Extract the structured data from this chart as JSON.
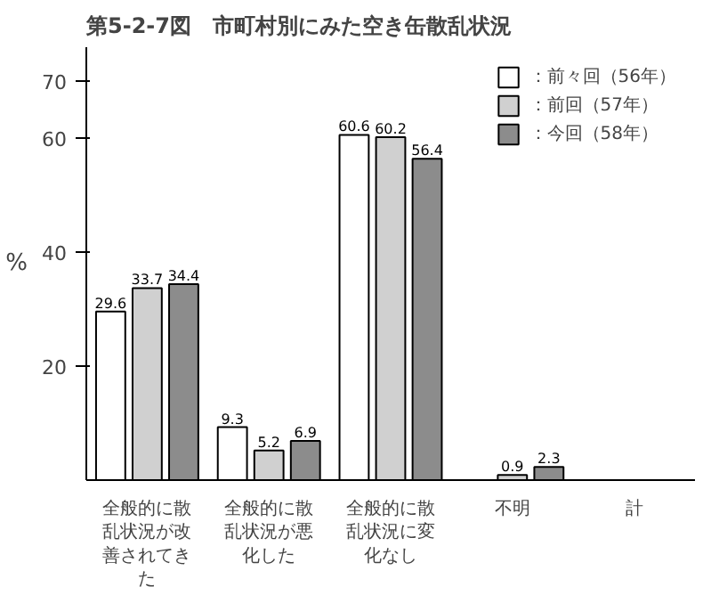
{
  "chart_data": {
    "type": "bar",
    "title": "第5-2-7図　市町村別にみた空き缶散乱状況",
    "ylabel": "%",
    "categories": [
      "全般的に散乱状況が改善されてきた",
      "全般的に散乱状況が悪化した",
      "全般的に散乱状況に変化なし",
      "不明",
      "計"
    ],
    "series": [
      {
        "name": "：前々回（56年）",
        "color": "#ffffff",
        "values": [
          29.6,
          9.3,
          60.6,
          null,
          null
        ]
      },
      {
        "name": "：前回（57年）",
        "color": "#d0d0d0",
        "values": [
          33.7,
          5.2,
          60.2,
          0.9,
          null
        ]
      },
      {
        "name": "：今回（58年）",
        "color": "#8c8c8c",
        "values": [
          34.4,
          6.9,
          56.4,
          2.3,
          null
        ]
      }
    ],
    "ylim": [
      0,
      76
    ],
    "yticks": [
      20,
      40,
      60,
      70
    ],
    "data_labels": true,
    "legend": "top right",
    "grid": false
  }
}
